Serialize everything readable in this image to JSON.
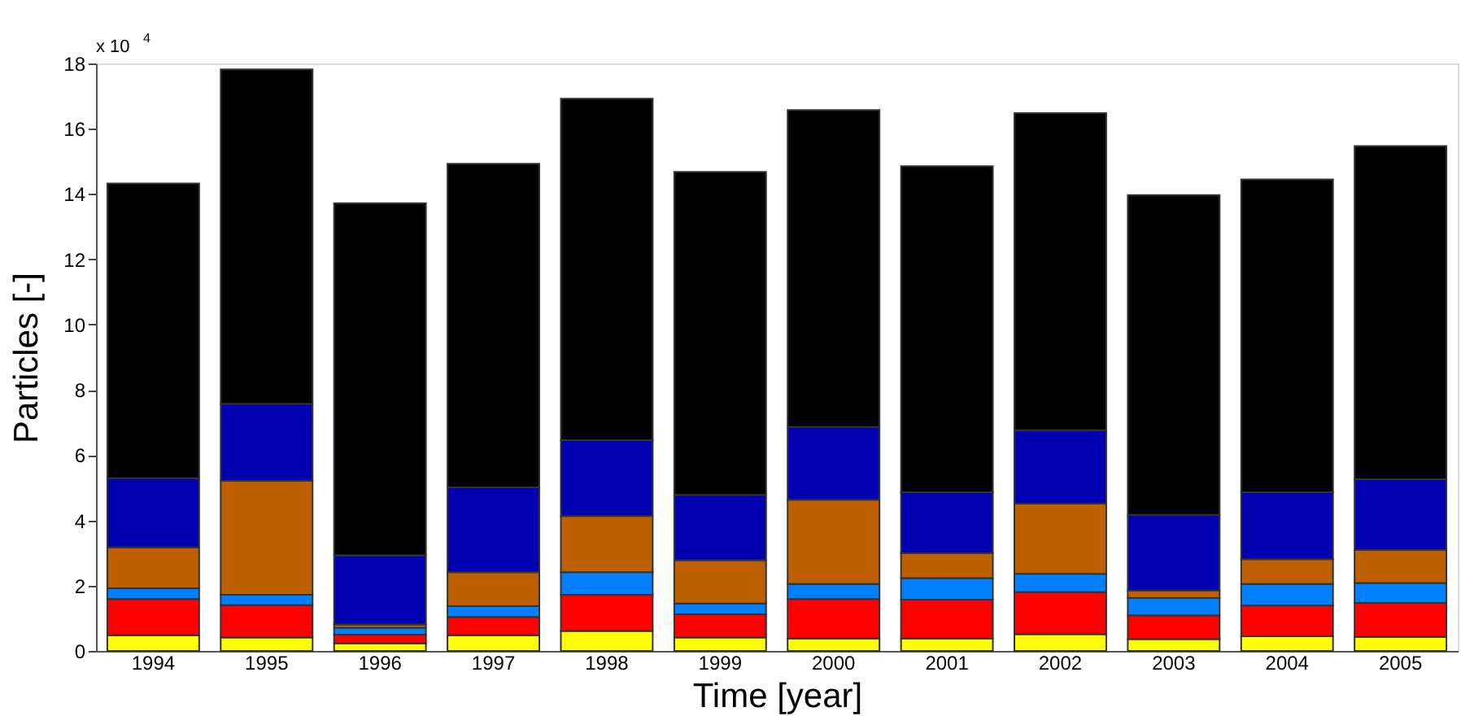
{
  "chart_data": {
    "type": "bar",
    "stacked": true,
    "xlabel": "Time [year]",
    "ylabel": "Particles [-]",
    "annotations": [
      "x 10$^{4}$"
    ],
    "categories": [
      "1994",
      "1995",
      "1996",
      "1997",
      "1998",
      "1999",
      "2000",
      "2001",
      "2002",
      "2003",
      "2004",
      "2005"
    ],
    "ylim": [
      0,
      18
    ],
    "yticks": [
      0,
      2,
      4,
      6,
      8,
      10,
      12,
      14,
      16,
      18
    ],
    "grid": false,
    "legend": false,
    "series": [
      {
        "color": "#ffff00",
        "values": [
          0.48,
          0.41,
          0.23,
          0.48,
          0.61,
          0.41,
          0.38,
          0.38,
          0.51,
          0.36,
          0.45,
          0.43
        ]
      },
      {
        "color": "#ff0000",
        "values": [
          1.11,
          0.99,
          0.27,
          0.56,
          1.11,
          0.71,
          1.21,
          1.19,
          1.29,
          0.73,
          0.94,
          1.04
        ]
      },
      {
        "color": "#0080ff",
        "values": [
          0.33,
          0.32,
          0.21,
          0.33,
          0.69,
          0.33,
          0.46,
          0.66,
          0.56,
          0.53,
          0.66,
          0.61
        ]
      },
      {
        "color": "#bf6000",
        "values": [
          1.25,
          3.49,
          0.1,
          1.04,
          1.72,
          1.33,
          2.58,
          0.76,
          2.15,
          0.23,
          0.76,
          1.01
        ]
      },
      {
        "color": "#0000b0",
        "values": [
          2.12,
          2.36,
          2.12,
          2.6,
          2.33,
          2.0,
          2.23,
          1.87,
          2.25,
          2.32,
          2.05,
          2.17
        ]
      },
      {
        "color": "#000000",
        "values": [
          9.03,
          10.25,
          10.79,
          9.92,
          10.46,
          9.9,
          9.71,
          9.99,
          9.72,
          9.8,
          9.59,
          10.21
        ]
      }
    ]
  }
}
